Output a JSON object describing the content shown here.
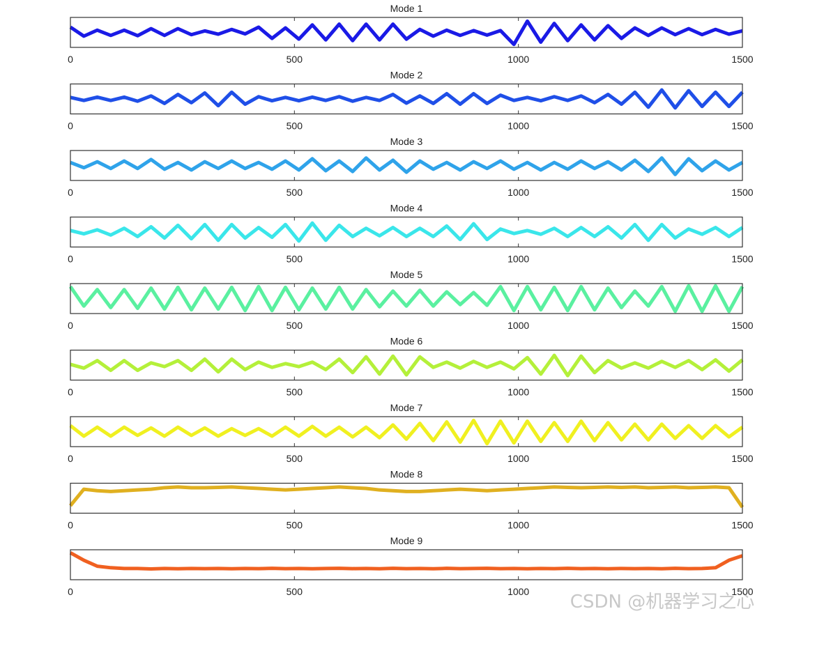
{
  "chart_data": [
    {
      "type": "line",
      "title": "Mode 1",
      "color": "#1a1ae6",
      "xlim": [
        0,
        1500
      ],
      "xticks": [
        0,
        500,
        1000,
        1500
      ],
      "ylim": [
        -1,
        1
      ],
      "x": [
        0,
        30,
        60,
        90,
        120,
        150,
        180,
        210,
        240,
        270,
        300,
        330,
        360,
        390,
        420,
        450,
        480,
        510,
        540,
        570,
        600,
        630,
        660,
        690,
        720,
        750,
        780,
        810,
        840,
        870,
        900,
        930,
        960,
        990,
        1020,
        1050,
        1080,
        1110,
        1140,
        1170,
        1200,
        1230,
        1260,
        1290,
        1320,
        1350,
        1380,
        1410,
        1440,
        1470,
        1500
      ],
      "values": [
        0.35,
        -0.25,
        0.15,
        -0.2,
        0.15,
        -0.22,
        0.25,
        -0.2,
        0.25,
        -0.15,
        0.1,
        -0.12,
        0.2,
        -0.1,
        0.35,
        -0.4,
        0.3,
        -0.45,
        0.5,
        -0.5,
        0.55,
        -0.55,
        0.55,
        -0.5,
        0.55,
        -0.45,
        0.2,
        -0.25,
        0.15,
        -0.2,
        0.12,
        -0.18,
        0.12,
        -0.8,
        0.75,
        -0.65,
        0.6,
        -0.55,
        0.5,
        -0.5,
        0.45,
        -0.4,
        0.3,
        -0.2,
        0.3,
        -0.15,
        0.25,
        -0.15,
        0.2,
        -0.12,
        0.1
      ]
    },
    {
      "type": "line",
      "title": "Mode 2",
      "color": "#1f4fe8",
      "xlim": [
        0,
        1500
      ],
      "xticks": [
        0,
        500,
        1000,
        1500
      ],
      "ylim": [
        -1,
        1
      ],
      "x": [
        0,
        30,
        60,
        90,
        120,
        150,
        180,
        210,
        240,
        270,
        300,
        330,
        360,
        390,
        420,
        450,
        480,
        510,
        540,
        570,
        600,
        630,
        660,
        690,
        720,
        750,
        780,
        810,
        840,
        870,
        900,
        930,
        960,
        990,
        1020,
        1050,
        1080,
        1110,
        1140,
        1170,
        1200,
        1230,
        1260,
        1290,
        1320,
        1350,
        1380,
        1410,
        1440,
        1470,
        1500
      ],
      "values": [
        0.1,
        -0.1,
        0.12,
        -0.1,
        0.12,
        -0.15,
        0.2,
        -0.3,
        0.3,
        -0.25,
        0.4,
        -0.45,
        0.45,
        -0.35,
        0.15,
        -0.12,
        0.1,
        -0.12,
        0.12,
        -0.1,
        0.15,
        -0.15,
        0.1,
        -0.1,
        0.3,
        -0.28,
        0.2,
        -0.3,
        0.35,
        -0.35,
        0.35,
        -0.3,
        0.25,
        -0.1,
        0.1,
        -0.12,
        0.15,
        -0.1,
        0.2,
        -0.25,
        0.3,
        -0.35,
        0.45,
        -0.55,
        0.6,
        -0.6,
        0.55,
        -0.5,
        0.45,
        -0.5,
        0.45
      ]
    },
    {
      "type": "line",
      "title": "Mode 3",
      "color": "#2fa3ea",
      "xlim": [
        0,
        1500
      ],
      "xticks": [
        0,
        500,
        1000,
        1500
      ],
      "ylim": [
        -1,
        1
      ],
      "x": [
        0,
        30,
        60,
        90,
        120,
        150,
        180,
        210,
        240,
        270,
        300,
        330,
        360,
        390,
        420,
        450,
        480,
        510,
        540,
        570,
        600,
        630,
        660,
        690,
        720,
        750,
        780,
        810,
        840,
        870,
        900,
        930,
        960,
        990,
        1020,
        1050,
        1080,
        1110,
        1140,
        1170,
        1200,
        1230,
        1260,
        1290,
        1320,
        1350,
        1380,
        1410,
        1440,
        1470,
        1500
      ],
      "values": [
        0.2,
        -0.15,
        0.25,
        -0.2,
        0.3,
        -0.2,
        0.4,
        -0.25,
        0.2,
        -0.3,
        0.25,
        -0.2,
        0.3,
        -0.2,
        0.2,
        -0.25,
        0.3,
        -0.3,
        0.45,
        -0.35,
        0.3,
        -0.4,
        0.5,
        -0.3,
        0.35,
        -0.45,
        0.3,
        -0.25,
        0.2,
        -0.3,
        0.25,
        -0.2,
        0.3,
        -0.25,
        0.2,
        -0.3,
        0.2,
        -0.25,
        0.3,
        -0.2,
        0.25,
        -0.3,
        0.35,
        -0.4,
        0.5,
        -0.6,
        0.45,
        -0.35,
        0.3,
        -0.3,
        0.2
      ]
    },
    {
      "type": "line",
      "title": "Mode 4",
      "color": "#3ae6ea",
      "xlim": [
        0,
        1500
      ],
      "xticks": [
        0,
        500,
        1000,
        1500
      ],
      "ylim": [
        -1,
        1
      ],
      "x": [
        0,
        30,
        60,
        90,
        120,
        150,
        180,
        210,
        240,
        270,
        300,
        330,
        360,
        390,
        420,
        450,
        480,
        510,
        540,
        570,
        600,
        630,
        660,
        690,
        720,
        750,
        780,
        810,
        840,
        870,
        900,
        930,
        960,
        990,
        1020,
        1050,
        1080,
        1110,
        1140,
        1170,
        1200,
        1230,
        1260,
        1290,
        1320,
        1350,
        1380,
        1410,
        1440,
        1470,
        1500
      ],
      "values": [
        0.1,
        -0.12,
        0.15,
        -0.2,
        0.25,
        -0.3,
        0.35,
        -0.4,
        0.45,
        -0.45,
        0.5,
        -0.55,
        0.5,
        -0.4,
        0.3,
        -0.35,
        0.5,
        -0.6,
        0.6,
        -0.55,
        0.45,
        -0.3,
        0.25,
        -0.25,
        0.3,
        -0.3,
        0.25,
        -0.3,
        0.4,
        -0.5,
        0.55,
        -0.5,
        0.2,
        -0.1,
        0.1,
        -0.15,
        0.25,
        -0.3,
        0.3,
        -0.3,
        0.35,
        -0.4,
        0.5,
        -0.55,
        0.5,
        -0.4,
        0.2,
        -0.15,
        0.3,
        -0.3,
        0.3
      ]
    },
    {
      "type": "line",
      "title": "Mode 5",
      "color": "#5af0a0",
      "xlim": [
        0,
        1500
      ],
      "xticks": [
        0,
        500,
        1000,
        1500
      ],
      "ylim": [
        -1,
        1
      ],
      "x": [
        0,
        30,
        60,
        90,
        120,
        150,
        180,
        210,
        240,
        270,
        300,
        330,
        360,
        390,
        420,
        450,
        480,
        510,
        540,
        570,
        600,
        630,
        660,
        690,
        720,
        750,
        780,
        810,
        840,
        870,
        900,
        930,
        960,
        990,
        1020,
        1050,
        1080,
        1110,
        1140,
        1170,
        1200,
        1230,
        1260,
        1290,
        1320,
        1350,
        1380,
        1410,
        1440,
        1470,
        1500
      ],
      "values": [
        0.8,
        -0.5,
        0.6,
        -0.6,
        0.6,
        -0.65,
        0.7,
        -0.7,
        0.75,
        -0.75,
        0.7,
        -0.7,
        0.75,
        -0.8,
        0.8,
        -0.8,
        0.75,
        -0.75,
        0.7,
        -0.7,
        0.75,
        -0.7,
        0.6,
        -0.55,
        0.5,
        -0.5,
        0.55,
        -0.5,
        0.45,
        -0.4,
        0.4,
        -0.45,
        0.8,
        -0.8,
        0.8,
        -0.75,
        0.75,
        -0.8,
        0.8,
        -0.75,
        0.7,
        -0.6,
        0.5,
        -0.5,
        0.8,
        -0.85,
        0.85,
        -0.85,
        0.85,
        -0.85,
        0.8
      ]
    },
    {
      "type": "line",
      "title": "Mode 6",
      "color": "#b4f03a",
      "xlim": [
        0,
        1500
      ],
      "xticks": [
        0,
        500,
        1000,
        1500
      ],
      "ylim": [
        -1,
        1
      ],
      "x": [
        0,
        30,
        60,
        90,
        120,
        150,
        180,
        210,
        240,
        270,
        300,
        330,
        360,
        390,
        420,
        450,
        480,
        510,
        540,
        570,
        600,
        630,
        660,
        690,
        720,
        750,
        780,
        810,
        840,
        870,
        900,
        930,
        960,
        990,
        1020,
        1050,
        1080,
        1110,
        1140,
        1170,
        1200,
        1230,
        1260,
        1290,
        1320,
        1350,
        1380,
        1410,
        1440,
        1470,
        1500
      ],
      "values": [
        0.05,
        -0.2,
        0.3,
        -0.35,
        0.3,
        -0.35,
        0.15,
        -0.1,
        0.3,
        -0.35,
        0.4,
        -0.45,
        0.4,
        -0.3,
        0.2,
        -0.15,
        0.1,
        -0.1,
        0.2,
        -0.3,
        0.4,
        -0.5,
        0.55,
        -0.6,
        0.6,
        -0.65,
        0.55,
        -0.15,
        0.2,
        -0.2,
        0.25,
        -0.15,
        0.2,
        -0.25,
        0.5,
        -0.6,
        0.65,
        -0.7,
        0.6,
        -0.5,
        0.3,
        -0.2,
        0.15,
        -0.2,
        0.25,
        -0.15,
        0.3,
        -0.3,
        0.35,
        -0.4,
        0.35
      ]
    },
    {
      "type": "line",
      "title": "Mode 7",
      "color": "#f0f020",
      "xlim": [
        0,
        1500
      ],
      "xticks": [
        0,
        500,
        1000,
        1500
      ],
      "ylim": [
        -1,
        1
      ],
      "x": [
        0,
        30,
        60,
        90,
        120,
        150,
        180,
        210,
        240,
        270,
        300,
        330,
        360,
        390,
        420,
        450,
        480,
        510,
        540,
        570,
        600,
        630,
        660,
        690,
        720,
        750,
        780,
        810,
        840,
        870,
        900,
        930,
        960,
        990,
        1020,
        1050,
        1080,
        1110,
        1140,
        1170,
        1200,
        1230,
        1260,
        1290,
        1320,
        1350,
        1380,
        1410,
        1440,
        1470,
        1500
      ],
      "values": [
        0.4,
        -0.3,
        0.3,
        -0.3,
        0.3,
        -0.25,
        0.25,
        -0.3,
        0.3,
        -0.25,
        0.25,
        -0.3,
        0.2,
        -0.25,
        0.2,
        -0.3,
        0.3,
        -0.3,
        0.35,
        -0.3,
        0.3,
        -0.35,
        0.3,
        -0.4,
        0.45,
        -0.5,
        0.55,
        -0.6,
        0.65,
        -0.7,
        0.75,
        -0.8,
        0.7,
        -0.75,
        0.7,
        -0.65,
        0.6,
        -0.65,
        0.7,
        -0.6,
        0.6,
        -0.55,
        0.5,
        -0.55,
        0.5,
        -0.45,
        0.4,
        -0.45,
        0.4,
        -0.35,
        0.3
      ]
    },
    {
      "type": "line",
      "title": "Mode 8",
      "color": "#e0b020",
      "xlim": [
        0,
        1500
      ],
      "xticks": [
        0,
        500,
        1000,
        1500
      ],
      "ylim": [
        -1,
        1
      ],
      "x": [
        0,
        30,
        60,
        90,
        120,
        150,
        180,
        210,
        240,
        270,
        300,
        330,
        360,
        390,
        420,
        450,
        480,
        510,
        540,
        570,
        600,
        630,
        660,
        690,
        720,
        750,
        780,
        810,
        840,
        870,
        900,
        930,
        960,
        990,
        1020,
        1050,
        1080,
        1110,
        1140,
        1170,
        1200,
        1230,
        1260,
        1290,
        1320,
        1350,
        1380,
        1410,
        1440,
        1470,
        1500
      ],
      "values": [
        -0.5,
        0.6,
        0.5,
        0.45,
        0.5,
        0.55,
        0.6,
        0.7,
        0.75,
        0.7,
        0.7,
        0.72,
        0.75,
        0.7,
        0.65,
        0.6,
        0.55,
        0.6,
        0.65,
        0.7,
        0.75,
        0.7,
        0.65,
        0.55,
        0.5,
        0.45,
        0.45,
        0.5,
        0.55,
        0.6,
        0.55,
        0.5,
        0.55,
        0.6,
        0.65,
        0.7,
        0.75,
        0.72,
        0.7,
        0.72,
        0.75,
        0.72,
        0.75,
        0.7,
        0.72,
        0.75,
        0.7,
        0.72,
        0.75,
        0.7,
        -0.6
      ]
    },
    {
      "type": "line",
      "title": "Mode 9",
      "color": "#f06020",
      "xlim": [
        0,
        1500
      ],
      "xticks": [
        0,
        500,
        1000,
        1500
      ],
      "ylim": [
        -1,
        1
      ],
      "x": [
        0,
        30,
        60,
        90,
        120,
        150,
        180,
        210,
        240,
        270,
        300,
        330,
        360,
        390,
        420,
        450,
        480,
        510,
        540,
        570,
        600,
        630,
        660,
        690,
        720,
        750,
        780,
        810,
        840,
        870,
        900,
        930,
        960,
        990,
        1020,
        1050,
        1080,
        1110,
        1140,
        1170,
        1200,
        1230,
        1260,
        1290,
        1320,
        1350,
        1380,
        1410,
        1440,
        1470,
        1500
      ],
      "values": [
        0.8,
        0.3,
        -0.1,
        -0.2,
        -0.25,
        -0.25,
        -0.28,
        -0.25,
        -0.27,
        -0.25,
        -0.26,
        -0.25,
        -0.27,
        -0.25,
        -0.26,
        -0.24,
        -0.26,
        -0.25,
        -0.27,
        -0.25,
        -0.24,
        -0.26,
        -0.25,
        -0.27,
        -0.24,
        -0.26,
        -0.25,
        -0.27,
        -0.24,
        -0.26,
        -0.25,
        -0.24,
        -0.26,
        -0.25,
        -0.27,
        -0.25,
        -0.26,
        -0.24,
        -0.26,
        -0.25,
        -0.27,
        -0.25,
        -0.26,
        -0.25,
        -0.27,
        -0.24,
        -0.26,
        -0.25,
        -0.2,
        0.3,
        0.6
      ]
    }
  ],
  "watermark": "CSDN @机器学习之心"
}
